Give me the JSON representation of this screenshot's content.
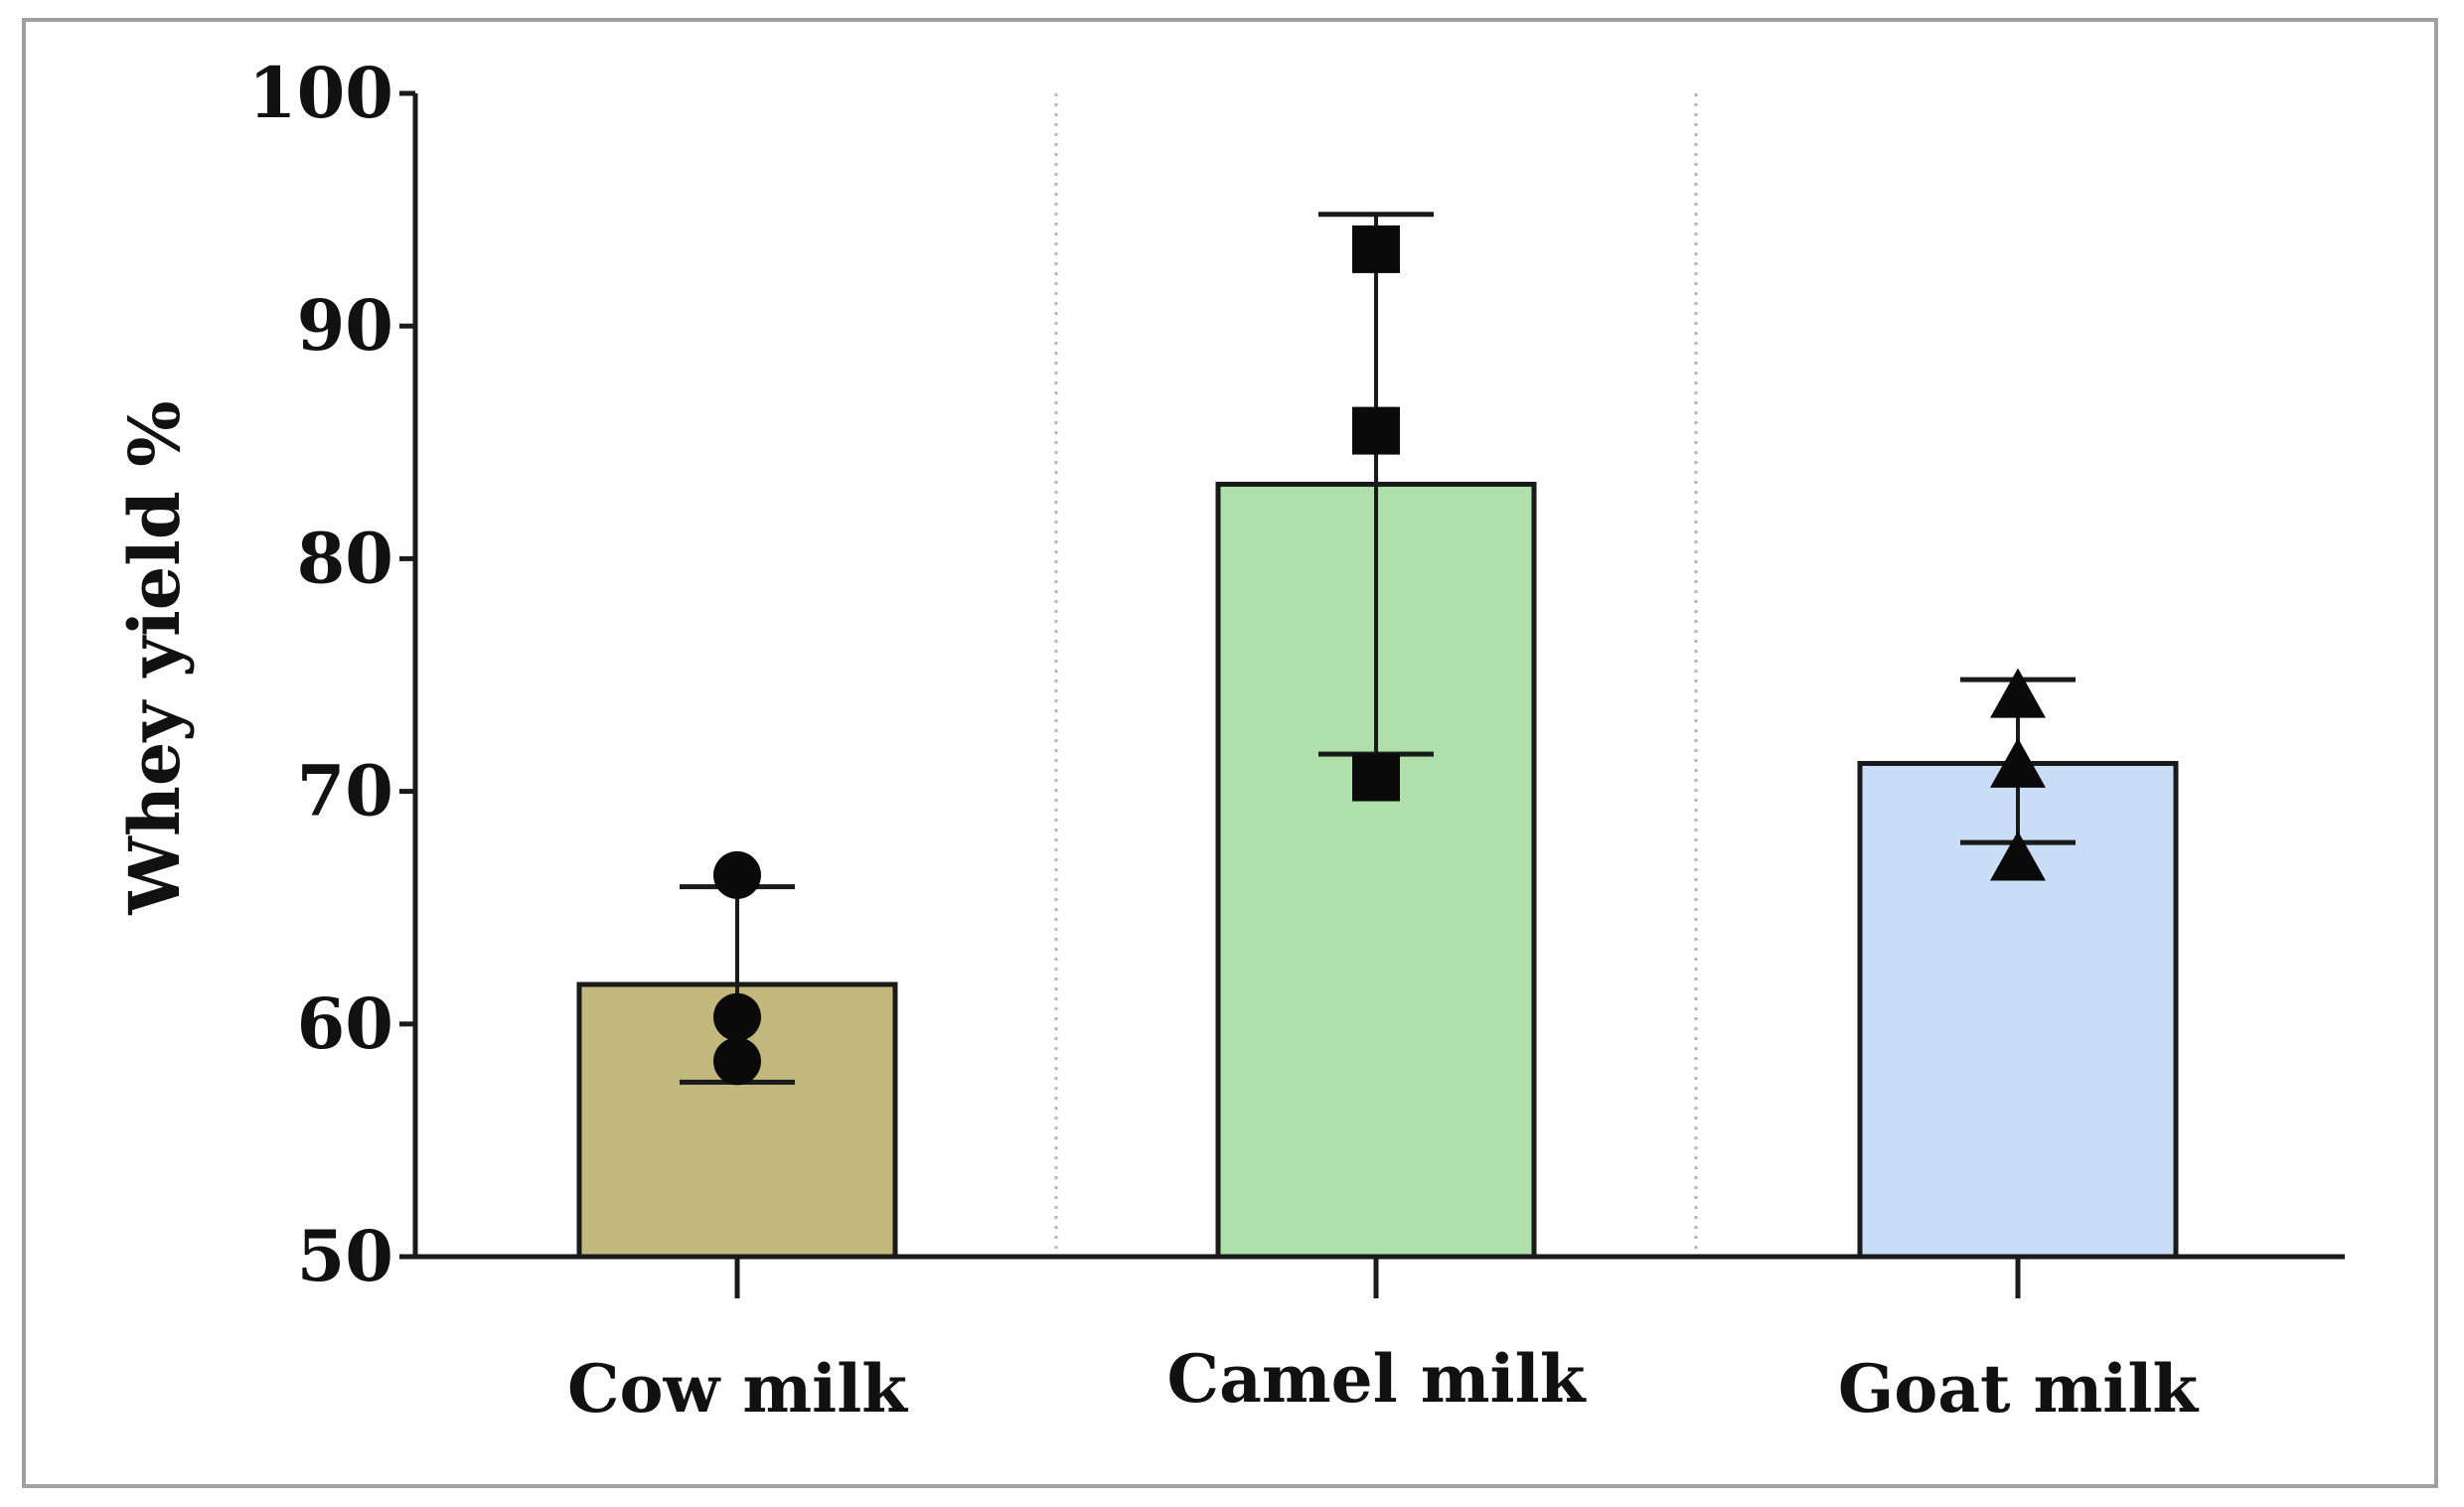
{
  "chart_data": {
    "type": "bar",
    "title": "",
    "xlabel": "",
    "ylabel": "Whey yield %",
    "ylim": [
      50,
      100
    ],
    "yticks": [
      "50",
      "60",
      "70",
      "80",
      "90",
      "100"
    ],
    "categories": [
      "Cow milk",
      "Camel milk",
      "Goat milk"
    ],
    "values": [
      61.7,
      83.2,
      71.2
    ],
    "error": [
      {
        "low": 57.5,
        "high": 65.9
      },
      {
        "low": 71.6,
        "high": 94.8
      },
      {
        "low": 67.8,
        "high": 74.8
      }
    ],
    "points": [
      [
        66.4,
        60.3,
        58.4
      ],
      [
        93.3,
        85.5,
        70.6
      ],
      [
        74.1,
        71.1,
        67.1
      ]
    ],
    "markers": [
      "circle",
      "square",
      "triangle"
    ],
    "colors": [
      "#c2b77c",
      "#afe0ac",
      "#c9def6"
    ],
    "separators": "dotted",
    "grid": false
  }
}
